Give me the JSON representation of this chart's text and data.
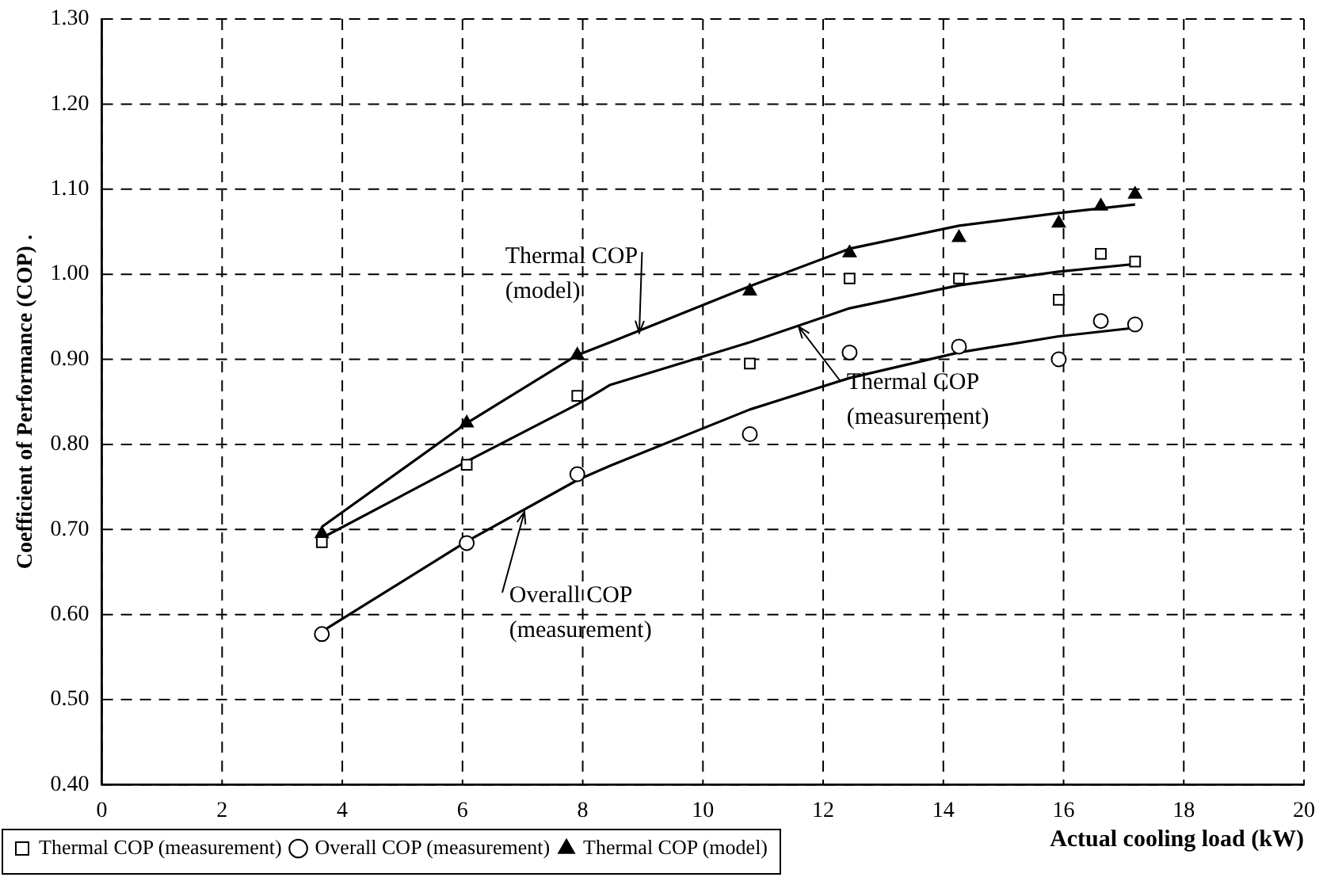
{
  "chart_data": {
    "type": "scatter",
    "xlabel": "Actual cooling load (kW)",
    "ylabel": "Coefficient of Performance (COP) .",
    "xlim": [
      0,
      20
    ],
    "xticks": [
      0,
      2,
      4,
      6,
      8,
      10,
      12,
      14,
      16,
      18,
      20
    ],
    "ylim": [
      0.4,
      1.3
    ],
    "yticks": [
      {
        "value": 0.4,
        "label": "0.40"
      },
      {
        "value": 0.5,
        "label": "0.50"
      },
      {
        "value": 0.6,
        "label": "0.60"
      },
      {
        "value": 0.7,
        "label": "0.70"
      },
      {
        "value": 0.8,
        "label": "0.80"
      },
      {
        "value": 0.9,
        "label": "0.90"
      },
      {
        "value": 1.0,
        "label": "1.00"
      },
      {
        "value": 1.1,
        "label": "1.10"
      },
      {
        "value": 1.2,
        "label": "1.20"
      },
      {
        "value": 1.3,
        "label": "1.30"
      }
    ],
    "grid": true,
    "legend": "bottom left",
    "series": [
      {
        "name": "Thermal COP (measurement)",
        "type": "scatter",
        "marker": "square",
        "color": "#000000",
        "x": [
          3.66,
          6.07,
          7.91,
          10.78,
          12.44,
          14.26,
          15.92,
          16.62,
          17.19
        ],
        "values": [
          0.685,
          0.776,
          0.857,
          0.895,
          0.995,
          0.995,
          0.97,
          1.024,
          1.015
        ]
      },
      {
        "name": "Overall COP (measurement)",
        "type": "scatter",
        "marker": "circle",
        "color": "#000000",
        "x": [
          3.66,
          6.07,
          7.91,
          10.78,
          12.44,
          14.26,
          15.92,
          16.62,
          17.19
        ],
        "values": [
          0.577,
          0.684,
          0.765,
          0.812,
          0.908,
          0.915,
          0.9,
          0.945,
          0.941
        ]
      },
      {
        "name": "Thermal COP (model)",
        "type": "scatter",
        "marker": "triangle",
        "color": "#000000",
        "x": [
          3.66,
          6.07,
          7.91,
          10.78,
          12.44,
          14.26,
          15.92,
          16.62,
          17.19
        ],
        "values": [
          0.695,
          0.825,
          0.905,
          0.98,
          1.025,
          1.043,
          1.06,
          1.08,
          1.094
        ]
      },
      {
        "type": "line",
        "marker": "none",
        "line_style": "solid",
        "color": "#000000",
        "x": [
          3.66,
          6.07,
          7.91,
          8.46,
          10.78,
          12.44,
          14.26,
          15.92,
          17.19
        ],
        "values": [
          0.703,
          0.825,
          0.905,
          0.92,
          0.986,
          1.03,
          1.057,
          1.072,
          1.082
        ]
      },
      {
        "type": "line",
        "marker": "none",
        "line_style": "solid",
        "color": "#000000",
        "x": [
          3.66,
          6.07,
          7.91,
          8.46,
          10.78,
          12.44,
          14.26,
          15.92,
          17.19
        ],
        "values": [
          0.69,
          0.78,
          0.847,
          0.87,
          0.92,
          0.96,
          0.987,
          1.003,
          1.012
        ]
      },
      {
        "type": "line",
        "marker": "none",
        "line_style": "solid",
        "color": "#000000",
        "x": [
          3.66,
          6.07,
          7.91,
          8.46,
          10.78,
          12.44,
          14.26,
          15.92,
          17.19
        ],
        "values": [
          0.58,
          0.686,
          0.758,
          0.775,
          0.841,
          0.878,
          0.908,
          0.927,
          0.937
        ]
      }
    ],
    "annotations": [
      {
        "text": "Thermal COP\n(model)",
        "x": 8.95,
        "y": 0.932
      },
      {
        "text": "Thermal COP\n(measurement)",
        "x": 11.6,
        "y": 0.939
      },
      {
        "text": "Overall COP\n(measurement)",
        "x": 7.04,
        "y": 0.72
      }
    ]
  }
}
